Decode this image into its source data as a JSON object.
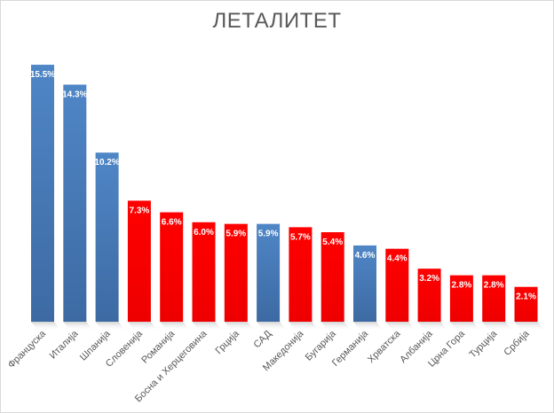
{
  "chart_data": {
    "type": "bar",
    "title": "ЛЕТАЛИТЕТ",
    "xlabel": "",
    "ylabel": "",
    "ylim": [
      0,
      17
    ],
    "grid": false,
    "legend": "none",
    "value_format": "{v}%",
    "colors": {
      "blue": "#4a7ebb",
      "red": "#ff0000"
    },
    "categories": [
      "Француска",
      "Италија",
      "Шпанија",
      "Словенија",
      "Романија",
      "Босна и Херцеговина",
      "Грција",
      "САД",
      "Македонија",
      "Бугарија",
      "Германија",
      "Хрватска",
      "Албанија",
      "Црна Гора",
      "Турција",
      "Србија"
    ],
    "values": [
      15.5,
      14.3,
      10.2,
      7.3,
      6.6,
      6.0,
      5.9,
      5.9,
      5.7,
      5.4,
      4.6,
      4.4,
      3.2,
      2.8,
      2.8,
      2.1
    ],
    "labels": [
      "15.5%",
      "14.3%",
      "10.2%",
      "7.3%",
      "6.6%",
      "6.0%",
      "5.9%",
      "5.9%",
      "5.7%",
      "5.4%",
      "4.6%",
      "4.4%",
      "3.2%",
      "2.8%",
      "2.8%",
      "2.1%"
    ],
    "bar_colors": [
      "blue",
      "blue",
      "blue",
      "red",
      "red",
      "red",
      "red",
      "blue",
      "red",
      "red",
      "blue",
      "red",
      "red",
      "red",
      "red",
      "red"
    ]
  }
}
